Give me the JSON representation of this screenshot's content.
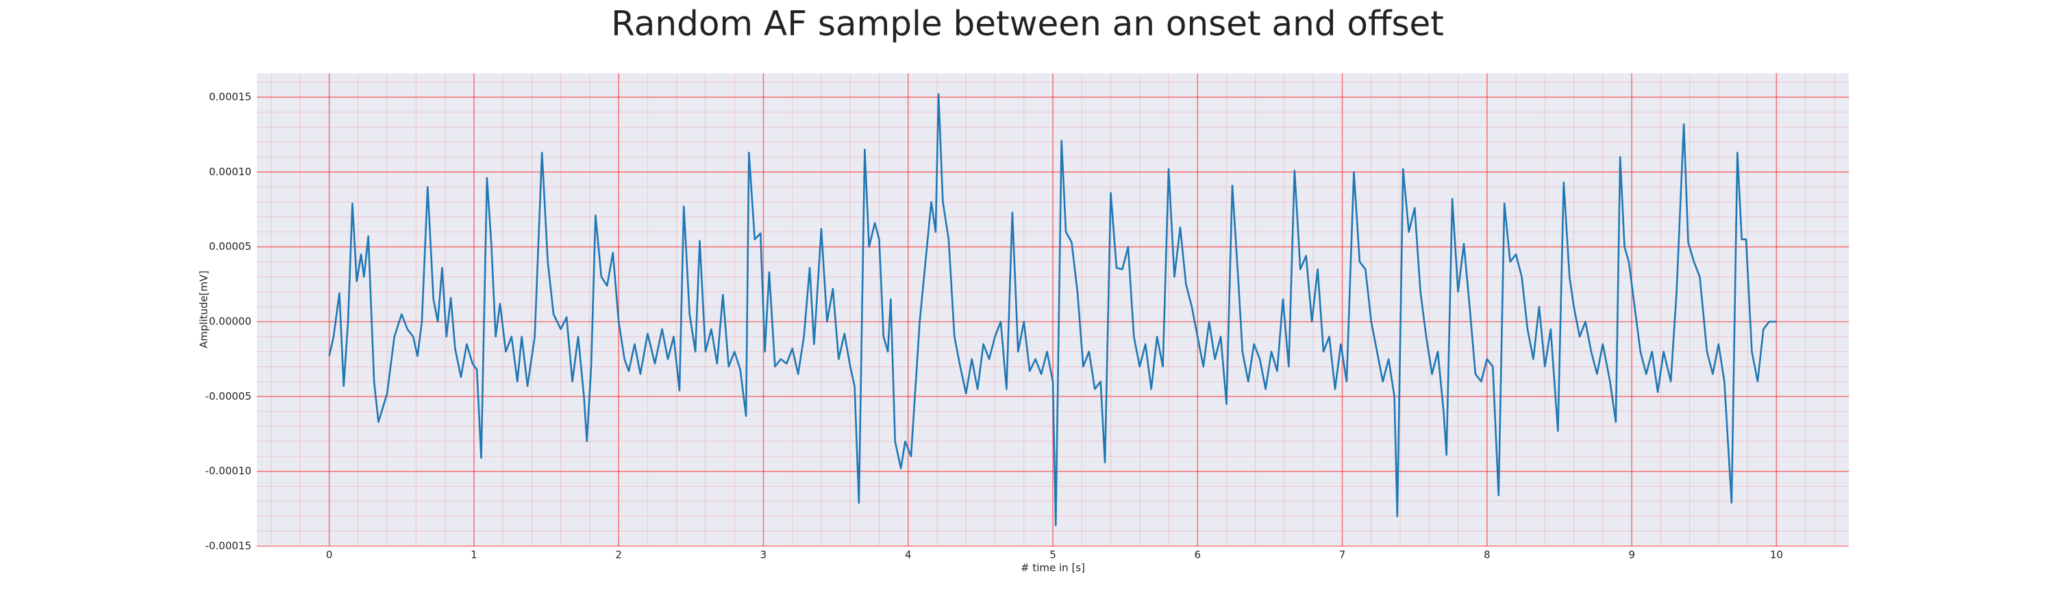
{
  "chart_data": {
    "type": "line",
    "title": "Random AF sample between an onset and offset",
    "xlabel": "# time in [s]",
    "ylabel": "Amplitude[mV]",
    "color": "#1f77b4",
    "grid": true,
    "minor_grid": true,
    "xlim": [
      -0.5,
      10.5
    ],
    "ylim": [
      -0.00015,
      0.000166
    ],
    "xticks": [
      0,
      1,
      2,
      3,
      4,
      5,
      6,
      7,
      8,
      9,
      10
    ],
    "yticks": [
      {
        "value": -0.00015,
        "label": "-0.00015"
      },
      {
        "value": -0.0001,
        "label": "-0.00010"
      },
      {
        "value": -5e-05,
        "label": "-0.00005"
      },
      {
        "value": 0,
        "label": "0.00000"
      },
      {
        "value": 5e-05,
        "label": "0.00005"
      },
      {
        "value": 0.0001,
        "label": "0.00010"
      },
      {
        "value": 0.00015,
        "label": "0.00015"
      }
    ],
    "x": [
      0,
      0.03,
      0.07,
      0.1,
      0.13,
      0.16,
      0.19,
      0.22,
      0.24,
      0.27,
      0.31,
      0.34,
      0.4,
      0.45,
      0.5,
      0.54,
      0.58,
      0.61,
      0.64,
      0.68,
      0.72,
      0.75,
      0.78,
      0.81,
      0.84,
      0.87,
      0.91,
      0.95,
      0.99,
      1.02,
      1.05,
      1.09,
      1.12,
      1.15,
      1.18,
      1.22,
      1.26,
      1.3,
      1.33,
      1.37,
      1.42,
      1.47,
      1.51,
      1.55,
      1.6,
      1.64,
      1.68,
      1.72,
      1.76,
      1.78,
      1.81,
      1.84,
      1.88,
      1.92,
      1.96,
      2.0,
      2.04,
      2.07,
      2.11,
      2.15,
      2.2,
      2.25,
      2.3,
      2.34,
      2.38,
      2.42,
      2.45,
      2.49,
      2.53,
      2.56,
      2.6,
      2.64,
      2.68,
      2.72,
      2.76,
      2.8,
      2.84,
      2.88,
      2.9,
      2.94,
      2.98,
      3.01,
      3.04,
      3.08,
      3.12,
      3.16,
      3.2,
      3.24,
      3.28,
      3.32,
      3.35,
      3.4,
      3.44,
      3.48,
      3.52,
      3.56,
      3.6,
      3.63,
      3.66,
      3.7,
      3.73,
      3.77,
      3.8,
      3.83,
      3.86,
      3.88,
      3.91,
      3.95,
      3.98,
      4.02,
      4.08,
      4.12,
      4.16,
      4.19,
      4.21,
      4.24,
      4.28,
      4.32,
      4.36,
      4.4,
      4.44,
      4.48,
      4.52,
      4.56,
      4.6,
      4.64,
      4.68,
      4.72,
      4.76,
      4.8,
      4.84,
      4.88,
      4.92,
      4.96,
      5.0,
      5.02,
      5.06,
      5.09,
      5.13,
      5.17,
      5.21,
      5.25,
      5.29,
      5.33,
      5.36,
      5.4,
      5.44,
      5.48,
      5.52,
      5.56,
      5.6,
      5.64,
      5.68,
      5.72,
      5.76,
      5.8,
      5.84,
      5.88,
      5.92,
      5.96,
      6.0,
      6.04,
      6.08,
      6.12,
      6.16,
      6.2,
      6.24,
      6.28,
      6.31,
      6.35,
      6.39,
      6.43,
      6.47,
      6.51,
      6.55,
      6.59,
      6.63,
      6.67,
      6.71,
      6.75,
      6.79,
      6.83,
      6.87,
      6.91,
      6.95,
      6.99,
      7.03,
      7.08,
      7.12,
      7.16,
      7.2,
      7.24,
      7.28,
      7.32,
      7.36,
      7.38,
      7.42,
      7.46,
      7.5,
      7.54,
      7.58,
      7.62,
      7.66,
      7.7,
      7.72,
      7.76,
      7.8,
      7.84,
      7.88,
      7.92,
      7.96,
      8.0,
      8.04,
      8.08,
      8.12,
      8.16,
      8.2,
      8.24,
      8.28,
      8.32,
      8.36,
      8.4,
      8.44,
      8.49,
      8.53,
      8.57,
      8.6,
      8.64,
      8.68,
      8.72,
      8.76,
      8.8,
      8.85,
      8.89,
      8.92,
      8.95,
      8.98,
      9.02,
      9.06,
      9.1,
      9.14,
      9.18,
      9.22,
      9.27,
      9.31,
      9.36,
      9.39,
      9.43,
      9.47,
      9.52,
      9.56,
      9.6,
      9.64,
      9.69,
      9.73,
      9.76,
      9.79,
      9.83,
      9.87,
      9.91,
      9.95,
      10.0
    ],
    "values": [
      -2.3e-05,
      -1e-05,
      1.9e-05,
      -4.3e-05,
      0,
      7.9e-05,
      2.7e-05,
      4.5e-05,
      3e-05,
      5.7e-05,
      -4e-05,
      -6.7e-05,
      -4.8e-05,
      -1e-05,
      5e-06,
      -5e-06,
      -1e-05,
      -2.3e-05,
      0,
      9e-05,
      1.5e-05,
      0,
      3.6e-05,
      -1e-05,
      1.6e-05,
      -1.8e-05,
      -3.7e-05,
      -1.5e-05,
      -2.8e-05,
      -3.2e-05,
      -9.1e-05,
      9.6e-05,
      5.2e-05,
      -1e-05,
      1.2e-05,
      -2e-05,
      -1e-05,
      -4e-05,
      -1e-05,
      -4.3e-05,
      -1e-05,
      0.000113,
      4e-05,
      5e-06,
      -5e-06,
      3e-06,
      -4e-05,
      -1e-05,
      -5e-05,
      -8e-05,
      -3e-05,
      7.1e-05,
      3e-05,
      2.4e-05,
      4.6e-05,
      0,
      -2.5e-05,
      -3.3e-05,
      -1.5e-05,
      -3.5e-05,
      -8e-06,
      -2.8e-05,
      -5e-06,
      -2.5e-05,
      -1e-05,
      -4.6e-05,
      7.7e-05,
      5e-06,
      -2e-05,
      5.4e-05,
      -2e-05,
      -5e-06,
      -2.8e-05,
      1.8e-05,
      -3e-05,
      -2e-05,
      -3.2e-05,
      -6.3e-05,
      0.000113,
      5.5e-05,
      5.9e-05,
      -2e-05,
      3.3e-05,
      -3e-05,
      -2.5e-05,
      -2.8e-05,
      -1.8e-05,
      -3.5e-05,
      -1e-05,
      3.6e-05,
      -1.5e-05,
      6.2e-05,
      0,
      2.2e-05,
      -2.5e-05,
      -8e-06,
      -3e-05,
      -4.3e-05,
      -0.000121,
      0.000115,
      5e-05,
      6.6e-05,
      5.5e-05,
      -1e-05,
      -2e-05,
      1.5e-05,
      -8e-05,
      -9.8e-05,
      -8e-05,
      -9e-05,
      0,
      4e-05,
      8e-05,
      6e-05,
      0.000152,
      8e-05,
      5.5e-05,
      -1e-05,
      -3e-05,
      -4.8e-05,
      -2.5e-05,
      -4.5e-05,
      -1.5e-05,
      -2.5e-05,
      -1e-05,
      0,
      -4.5e-05,
      7.3e-05,
      -2e-05,
      0,
      -3.3e-05,
      -2.5e-05,
      -3.5e-05,
      -2e-05,
      -4e-05,
      -0.000136,
      0.000121,
      6e-05,
      5.3e-05,
      2e-05,
      -3e-05,
      -2e-05,
      -4.5e-05,
      -4e-05,
      -9.4e-05,
      8.6e-05,
      3.6e-05,
      3.5e-05,
      5e-05,
      -1e-05,
      -3e-05,
      -1.5e-05,
      -4.5e-05,
      -1e-05,
      -3e-05,
      0.000102,
      3e-05,
      6.3e-05,
      2.5e-05,
      1e-05,
      -1e-05,
      -3e-05,
      0,
      -2.5e-05,
      -1e-05,
      -5.5e-05,
      9.1e-05,
      3e-05,
      -2e-05,
      -4e-05,
      -1.5e-05,
      -2.5e-05,
      -4.5e-05,
      -2e-05,
      -3.3e-05,
      1.5e-05,
      -3e-05,
      0.000101,
      3.5e-05,
      4.4e-05,
      0,
      3.5e-05,
      -2e-05,
      -1e-05,
      -4.5e-05,
      -1.5e-05,
      -4e-05,
      0.0001,
      4e-05,
      3.5e-05,
      0,
      -2e-05,
      -4e-05,
      -2.5e-05,
      -5e-05,
      -0.00013,
      0.000102,
      6e-05,
      7.6e-05,
      2e-05,
      -1e-05,
      -3.5e-05,
      -2e-05,
      -6e-05,
      -8.9e-05,
      8.2e-05,
      2e-05,
      5.2e-05,
      1e-05,
      -3.5e-05,
      -4e-05,
      -2.5e-05,
      -3e-05,
      -0.000116,
      7.9e-05,
      4e-05,
      4.5e-05,
      3e-05,
      -5e-06,
      -2.5e-05,
      1e-05,
      -3e-05,
      -5e-06,
      -7.3e-05,
      9.3e-05,
      3e-05,
      1e-05,
      -1e-05,
      0,
      -2e-05,
      -3.5e-05,
      -1.5e-05,
      -4e-05,
      -6.7e-05,
      0.00011,
      5e-05,
      4e-05,
      1e-05,
      -2e-05,
      -3.5e-05,
      -2e-05,
      -4.7e-05,
      -2e-05,
      -4e-05,
      2e-05,
      0.000132,
      5.3e-05,
      4e-05,
      3e-05,
      -2e-05,
      -3.5e-05,
      -1.5e-05,
      -4e-05,
      -0.000121,
      0.000113,
      5.5e-05,
      5.5e-05,
      -2e-05,
      -4e-05,
      -5e-06,
      0,
      0
    ]
  }
}
